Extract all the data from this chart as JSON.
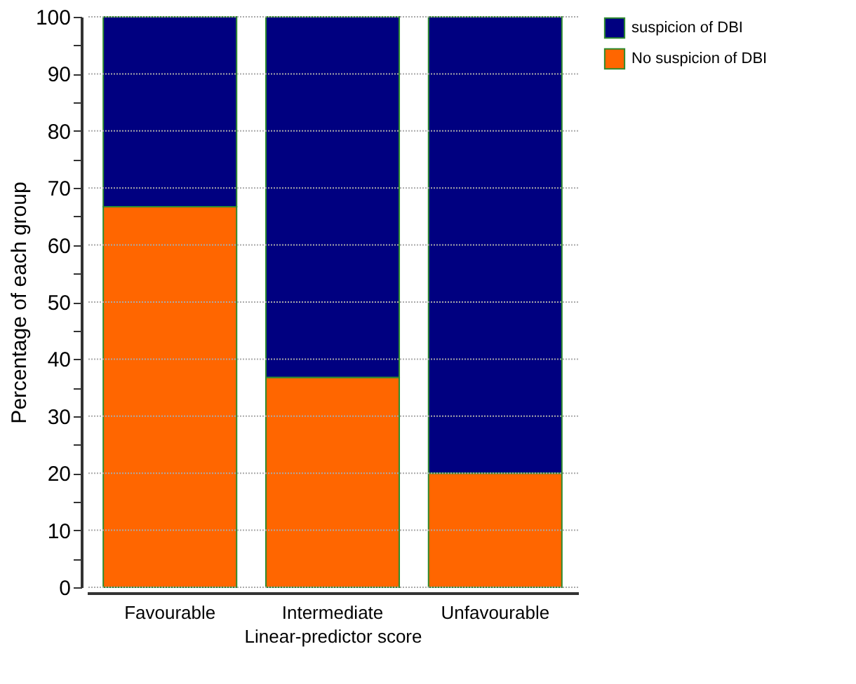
{
  "chart_data": {
    "type": "bar",
    "stacked": true,
    "xlabel": "Linear-predictor score",
    "ylabel": "Percentage of each group",
    "categories": [
      "Favourable",
      "Intermediate",
      "Unfavourable"
    ],
    "series": [
      {
        "name": "No suspicion of DBI",
        "color": "#ff6600",
        "values": [
          66.7,
          36.8,
          20
        ]
      },
      {
        "name": "suspicion of DBI",
        "color": "#000080",
        "values": [
          33.3,
          63.2,
          80
        ]
      }
    ],
    "ylim": [
      0,
      100
    ],
    "yticks": [
      0,
      {
        "value": 5,
        "label": null
      },
      10,
      {
        "value": 15,
        "label": null
      },
      20,
      {
        "value": 25,
        "label": null
      },
      30,
      {
        "value": 35,
        "label": null
      },
      40,
      {
        "value": 45,
        "label": null
      },
      50,
      {
        "value": 55,
        "label": null
      },
      60,
      {
        "value": 65,
        "label": null
      },
      70,
      {
        "value": 75,
        "label": null
      },
      80,
      {
        "value": 85,
        "label": null
      },
      90,
      {
        "value": 95,
        "label": null
      },
      100
    ],
    "grid": "y",
    "legend": "right"
  }
}
